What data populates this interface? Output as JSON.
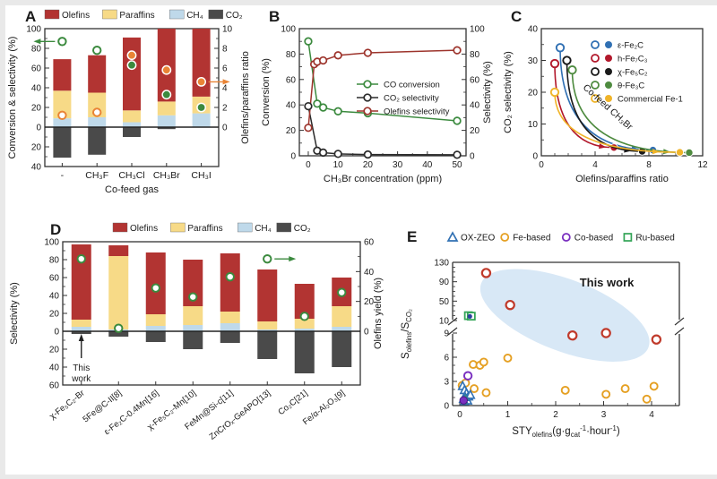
{
  "colors": {
    "olefins": "#b23432",
    "paraffins": "#f7da87",
    "ch4": "#bfd9ea",
    "co2": "#4a4a4a",
    "green": "#3b8a3e",
    "orange": "#e98436",
    "darkred": "#9d342c",
    "black": "#2b2b2b",
    "frame": "#333333",
    "text": "#1a1a1a",
    "e_blue": "#3070b3",
    "e_orange": "#e5a023",
    "e_purple": "#7a30c0",
    "e_green": "#33a457",
    "e_red": "#c03a2b",
    "ellipse_fill": "#d8e8f6",
    "thiswork_text": "#b03226",
    "teal": "#2f9187",
    "navy": "#2c3f9e"
  },
  "chart_data": [
    {
      "panel": "A",
      "type": "bar",
      "legend": [
        {
          "label": "Olefins",
          "color": "olefins"
        },
        {
          "label": "Paraffins",
          "color": "paraffins"
        },
        {
          "label": "CH₄",
          "color": "ch4"
        },
        {
          "label": "CO₂",
          "color": "co2"
        }
      ],
      "categories": [
        "-",
        "CH₃F",
        "CH₃Cl",
        "CH₃Br",
        "CH₃I"
      ],
      "xlabel": "Co-feed gas",
      "ylabel_left": "Conversion & selectivity (%)",
      "ylabel_right": "Olefins/paraffins ratio",
      "ylim_left": [
        -40,
        100
      ],
      "yticks_left": [
        100,
        80,
        60,
        40,
        20,
        0,
        -20,
        -40
      ],
      "ylim_right": [
        0,
        10
      ],
      "yticks_right": [
        10,
        8,
        6,
        4,
        2,
        0
      ],
      "series": {
        "ch4": [
          9,
          10,
          5,
          12,
          14
        ],
        "paraffins": [
          28,
          25,
          12,
          14,
          17
        ],
        "olefins": [
          32,
          38,
          74,
          74,
          69
        ],
        "co2": [
          -31,
          -28,
          -10,
          -2,
          0
        ]
      },
      "markers": [
        {
          "name": "conversion",
          "axis": "left",
          "color": "green",
          "values": [
            87,
            78,
            63,
            33,
            20
          ],
          "open": [
            1,
            1,
            0,
            0,
            0
          ],
          "arrow": {
            "index": 0,
            "dir": "left"
          }
        },
        {
          "name": "olefins-paraffins-ratio",
          "axis": "right",
          "color": "orange",
          "values": [
            1.2,
            1.5,
            7.3,
            5.8,
            4.6
          ],
          "open": [
            1,
            1,
            0,
            0,
            0
          ],
          "arrow": {
            "index": 4,
            "dir": "right"
          }
        }
      ]
    },
    {
      "panel": "B",
      "type": "line",
      "xlabel": "CH₃Br concentration (ppm)",
      "ylabel_left": "Conversion (%)",
      "ylabel_right": "Selectivity (%)",
      "xlim": [
        -3,
        53
      ],
      "xticks": [
        0,
        10,
        20,
        30,
        40,
        50
      ],
      "ylim": [
        0,
        100
      ],
      "yticks": [
        0,
        20,
        40,
        60,
        80,
        100
      ],
      "series": [
        {
          "name": "CO conversion",
          "color": "green",
          "x": [
            0,
            3,
            5,
            10,
            20,
            50
          ],
          "y": [
            90,
            41,
            38,
            35,
            33.5,
            27.5
          ]
        },
        {
          "name": "CO₂ selectivity",
          "color": "black",
          "x": [
            0,
            3,
            5,
            10,
            20,
            50
          ],
          "y": [
            39,
            4,
            2.5,
            1.5,
            1,
            0.8
          ]
        },
        {
          "name": "Olefins selectivity",
          "color": "darkred",
          "x": [
            0,
            2,
            3,
            5,
            10,
            20,
            50
          ],
          "y": [
            22,
            72,
            74,
            75,
            79,
            81,
            83
          ]
        }
      ],
      "legend_order": [
        "CO conversion",
        "CO₂ selectivity",
        "Olefins selectivity"
      ]
    },
    {
      "panel": "C",
      "type": "curves",
      "xlabel": "Olefins/paraffins ratio",
      "ylabel": "CO₂ selectivity (%)",
      "xlim": [
        0,
        12
      ],
      "xticks": [
        0,
        4,
        8,
        12
      ],
      "ylim": [
        0,
        40
      ],
      "yticks": [
        0,
        10,
        20,
        30,
        40
      ],
      "annotation": "Co-feed CH₃Br",
      "series": [
        {
          "name": "ε-Fe₂C",
          "color": "#3070b3",
          "start": [
            1.4,
            34
          ],
          "end": [
            8.3,
            1.8
          ]
        },
        {
          "name": "h-Fe₇C₃",
          "color": "#b2182b",
          "start": [
            1.0,
            29
          ],
          "end": [
            5.4,
            2.6
          ]
        },
        {
          "name": "χ-Fe₅C₂",
          "color": "#1a1a1a",
          "start": [
            1.9,
            30
          ],
          "end": [
            7.5,
            1.4
          ]
        },
        {
          "name": "θ-Fe₃C",
          "color": "#4e8b3f",
          "start": [
            2.3,
            27
          ],
          "end": [
            11.0,
            1.0
          ]
        },
        {
          "name": "Commercial Fe-1",
          "color": "#f0b429",
          "start": [
            1.0,
            20
          ],
          "end": [
            10.3,
            1.1
          ]
        }
      ]
    },
    {
      "panel": "D",
      "type": "bar",
      "legend": [
        {
          "label": "Olefins",
          "color": "olefins"
        },
        {
          "label": "Paraffins",
          "color": "paraffins"
        },
        {
          "label": "CH₄",
          "color": "ch4"
        },
        {
          "label": "CO₂",
          "color": "co2"
        }
      ],
      "categories": [
        "χ-Fe₅C₂-Br",
        "5Fe@C-II[8]",
        "ε-Fe₂C-0.4Mn[16]",
        "χ-Fe₅C₂-Mn[10]",
        "FeMn@Si-c[11]",
        "ZnCrOₓ-GeAPO[13]",
        "Co₂C[21]",
        "Fe/α-Al₂O₃[9]"
      ],
      "xlabel": "",
      "ylabel_left": "Selectivity (%)",
      "ylabel_right": "Olefins yield (%)",
      "ylim_left": [
        -60,
        100
      ],
      "yticks_left": [
        100,
        80,
        60,
        40,
        20,
        0,
        -20,
        -40,
        -60
      ],
      "ylim_right": [
        0,
        60
      ],
      "yticks_right": [
        60,
        40,
        20,
        0
      ],
      "series": {
        "ch4": [
          5,
          2,
          6,
          7,
          9,
          2,
          3,
          5
        ],
        "paraffins": [
          8,
          82,
          13,
          21,
          13,
          9,
          11,
          23
        ],
        "olefins": [
          84,
          12,
          69,
          52,
          65,
          58,
          39,
          32
        ],
        "co2": [
          -3,
          -6,
          -12,
          -20,
          -13,
          -31,
          -47,
          -40
        ]
      },
      "markers": [
        {
          "name": "olefins-yield",
          "axis": "right",
          "color": "green",
          "values": [
            48.5,
            2,
            29,
            23,
            36.5,
            48.5,
            10,
            26
          ],
          "open": [
            1,
            1,
            1,
            1,
            1,
            1,
            1,
            1
          ],
          "arrow": {
            "index": 5,
            "dir": "right"
          }
        }
      ],
      "annotation": {
        "lines": [
          "This",
          "work"
        ],
        "index": 0
      }
    },
    {
      "panel": "E",
      "type": "scatter",
      "legend": [
        {
          "label": "OX-ZEO",
          "marker": "triangle",
          "color": "e_blue"
        },
        {
          "label": "Fe-based",
          "marker": "circle",
          "color": "e_orange"
        },
        {
          "label": "Co-based",
          "marker": "circle",
          "color": "e_purple"
        },
        {
          "label": "Ru-based",
          "marker": "square",
          "color": "e_green"
        }
      ],
      "xlabel_segments": [
        {
          "t": "STY"
        },
        {
          "t": "olefins",
          "sub": true
        },
        {
          "t": "(g·g"
        },
        {
          "t": "cat",
          "sub": true
        },
        {
          "t": "-1",
          "sup": true
        },
        {
          "t": "·hour"
        },
        {
          "t": "-1",
          "sup": true
        },
        {
          "t": ")"
        }
      ],
      "ylabel_segments": [
        {
          "t": "S"
        },
        {
          "t": "olefins",
          "sub": true
        },
        {
          "t": "/S"
        },
        {
          "t": "CO₂",
          "sub": true
        }
      ],
      "xticks": [
        0,
        1,
        2,
        3,
        4
      ],
      "yticks_lower": [
        9,
        6,
        3,
        0
      ],
      "ylim_lower": [
        0,
        9
      ],
      "yticks_upper": [
        130,
        90,
        50,
        10
      ],
      "ylim_upper": [
        10,
        130
      ],
      "ellipse": {
        "cx": 0.495,
        "cy": 0.37,
        "rx": 0.395,
        "ry": 0.25,
        "rot": 21,
        "label": "This work",
        "label_x": 0.68,
        "label_y": 0.17
      },
      "series": {
        "this_work": [
          [
            0.55,
            108
          ],
          [
            1.05,
            42
          ],
          [
            2.35,
            8.7
          ],
          [
            3.05,
            9.0
          ],
          [
            4.1,
            8.2
          ]
        ],
        "fe_based": [
          [
            0.05,
            2.5
          ],
          [
            0.12,
            2.8
          ],
          [
            0.3,
            2.1
          ],
          [
            0.28,
            5.1
          ],
          [
            0.42,
            5.0
          ],
          [
            0.5,
            5.4
          ],
          [
            1.0,
            5.9
          ],
          [
            0.55,
            1.6
          ],
          [
            0.15,
            0.9
          ],
          [
            2.2,
            1.9
          ],
          [
            3.05,
            1.4
          ],
          [
            3.45,
            2.1
          ],
          [
            3.9,
            0.8
          ],
          [
            4.05,
            2.4
          ]
        ],
        "co_based_open": [
          [
            0.17,
            3.7
          ]
        ],
        "co_based_filled": [
          [
            0.08,
            0.65
          ]
        ],
        "ru_based": [
          [
            0.18,
            20
          ],
          [
            0.24,
            19
          ]
        ],
        "ru_inner": [
          [
            0.21,
            18.5
          ]
        ],
        "oxzeo": [
          [
            0.06,
            2.4
          ],
          [
            0.1,
            1.9
          ],
          [
            0.14,
            1.5
          ],
          [
            0.18,
            1.1
          ],
          [
            0.08,
            0.8
          ],
          [
            0.16,
            0.6
          ],
          [
            0.22,
            1.3
          ]
        ],
        "oxzeo_filled": [
          [
            0.12,
            1.0
          ],
          [
            0.1,
            0.5
          ]
        ]
      }
    }
  ]
}
